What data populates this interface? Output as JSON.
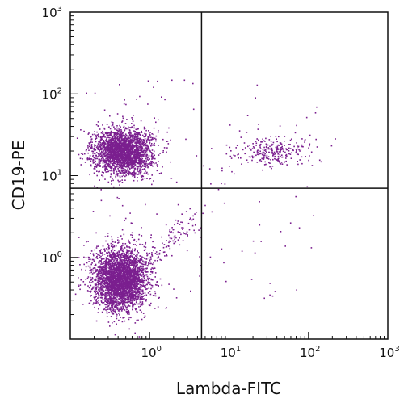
{
  "chart_data": {
    "type": "scatter",
    "title": "",
    "xlabel": "Lambda-FITC",
    "ylabel": "CD19-PE",
    "x_scale": "log",
    "y_scale": "log",
    "xlim": [
      0.1,
      1000
    ],
    "ylim": [
      0.1,
      1000
    ],
    "grid": false,
    "legend": "none",
    "x_ticks": [
      {
        "value": 1,
        "base": "10",
        "exp": "0"
      },
      {
        "value": 10,
        "base": "10",
        "exp": "1"
      },
      {
        "value": 100,
        "base": "10",
        "exp": "2"
      },
      {
        "value": 1000,
        "base": "10",
        "exp": "3"
      }
    ],
    "y_ticks": [
      {
        "value": 1,
        "base": "10",
        "exp": "0"
      },
      {
        "value": 10,
        "base": "10",
        "exp": "1"
      },
      {
        "value": 100,
        "base": "10",
        "exp": "2"
      },
      {
        "value": 1000,
        "base": "10",
        "exp": "3"
      }
    ],
    "quadrant_gates": {
      "x": 4.5,
      "y": 7
    },
    "point_color": "#7b1f8f",
    "populations": [
      {
        "id": "cd19-pos-lambda-neg",
        "center": [
          0.45,
          20
        ],
        "spread_log10": [
          0.18,
          0.14
        ],
        "count": 2600
      },
      {
        "id": "cd19-neg-lambda-neg",
        "center": [
          0.42,
          0.55
        ],
        "spread_log10": [
          0.17,
          0.19
        ],
        "count": 3200
      },
      {
        "id": "cd19-pos-lambda-pos",
        "center": [
          35,
          20
        ],
        "spread_log10": [
          0.24,
          0.09
        ],
        "count": 260
      },
      {
        "id": "diagonal-smear",
        "from": [
          0.8,
          0.8
        ],
        "to": [
          4.0,
          3.2
        ],
        "count": 120
      },
      {
        "id": "background-scatter",
        "xrange": [
          0.15,
          150
        ],
        "yrange": [
          0.3,
          150
        ],
        "count": 140
      }
    ]
  }
}
